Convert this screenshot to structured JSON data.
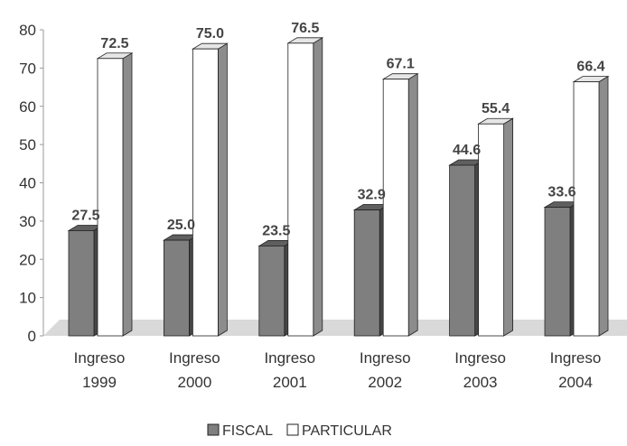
{
  "chart_data": {
    "type": "bar",
    "categories": [
      "Ingreso 1999",
      "Ingreso 2000",
      "Ingreso 2001",
      "Ingreso 2002",
      "Ingreso 2003",
      "Ingreso 2004"
    ],
    "category_lines": [
      [
        "Ingreso",
        "1999"
      ],
      [
        "Ingreso",
        "2000"
      ],
      [
        "Ingreso",
        "2001"
      ],
      [
        "Ingreso",
        "2002"
      ],
      [
        "Ingreso",
        "2003"
      ],
      [
        "Ingreso",
        "2004"
      ]
    ],
    "series": [
      {
        "name": "FISCAL",
        "values": [
          27.5,
          25.0,
          23.5,
          32.9,
          44.6,
          33.6
        ],
        "labels": [
          "27.5",
          "25.0",
          "23.5",
          "32.9",
          "44.6",
          "33.6"
        ],
        "color": "#7f7f7f"
      },
      {
        "name": "PARTICULAR",
        "values": [
          72.5,
          75.0,
          76.5,
          67.1,
          55.4,
          66.4
        ],
        "labels": [
          "72.5",
          "75.0",
          "76.5",
          "67.1",
          "55.4",
          "66.4"
        ],
        "color": "#ffffff"
      }
    ],
    "yticks": [
      "0",
      "10",
      "20",
      "30",
      "40",
      "50",
      "60",
      "70",
      "80"
    ],
    "ylim": [
      0,
      80
    ],
    "style": "3d",
    "legend_position": "bottom",
    "grid": false
  }
}
